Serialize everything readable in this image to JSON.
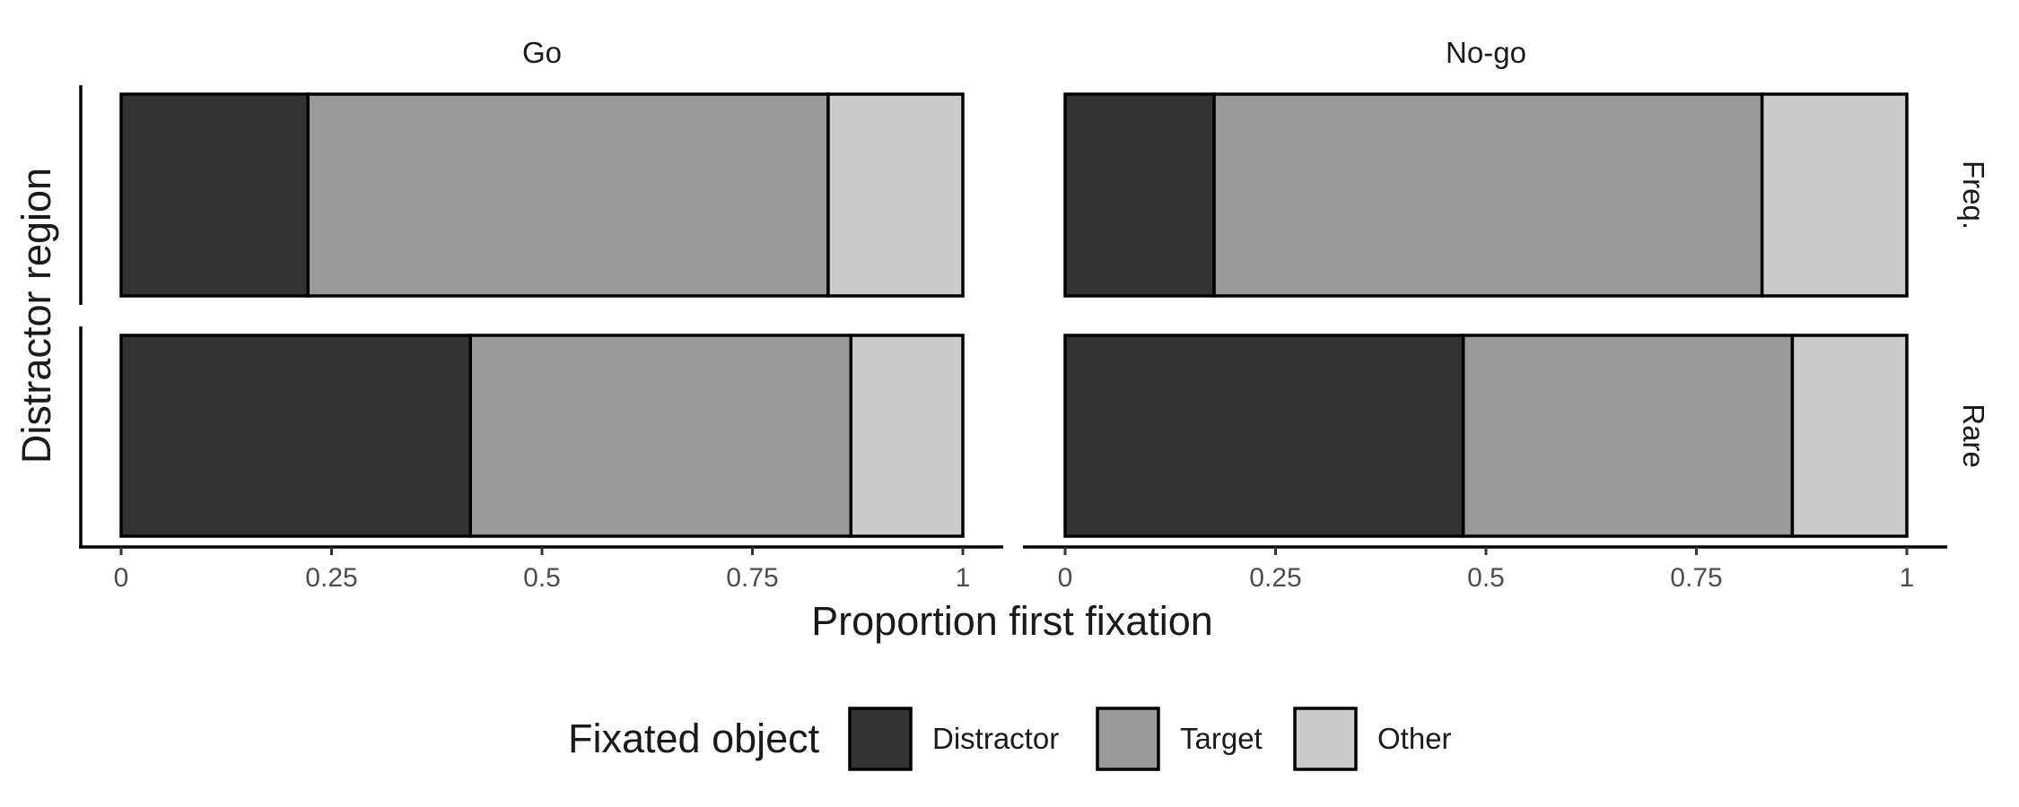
{
  "chart_data": {
    "type": "bar",
    "orientation": "horizontal",
    "stacked": true,
    "xlabel": "Proportion first fixation",
    "ylabel": "Distractor region",
    "xlim": [
      0,
      1
    ],
    "x_ticks": [
      0,
      0.25,
      0.5,
      0.75,
      1
    ],
    "x_tick_labels": [
      "0",
      "0.25",
      "0.5",
      "0.75",
      "1"
    ],
    "grid": false,
    "col_facets": [
      "Go",
      "No-go"
    ],
    "row_facets": [
      "Freq.",
      "Rare"
    ],
    "series": [
      {
        "name": "Distractor",
        "color": "#333333"
      },
      {
        "name": "Target",
        "color": "#999999"
      },
      {
        "name": "Other",
        "color": "#cccccc"
      }
    ],
    "values": {
      "Go": {
        "Freq.": [
          0.222,
          0.618,
          0.16
        ],
        "Rare": [
          0.415,
          0.452,
          0.133
        ]
      },
      "No-go": {
        "Freq.": [
          0.177,
          0.651,
          0.172
        ],
        "Rare": [
          0.473,
          0.391,
          0.136
        ]
      }
    },
    "legend": {
      "title": "Fixated object",
      "position": "bottom"
    }
  }
}
